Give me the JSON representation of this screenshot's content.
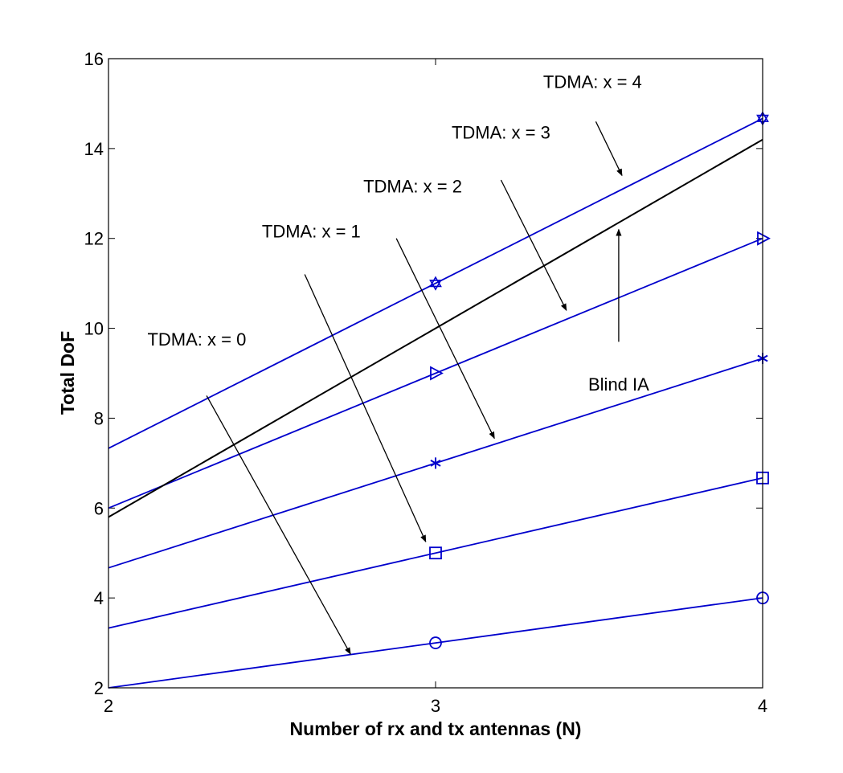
{
  "chart_data": {
    "type": "line",
    "title": "",
    "xlabel": "Number of rx and tx antennas (N)",
    "ylabel": "Total DoF",
    "xlim": [
      2,
      4
    ],
    "ylim": [
      2,
      16
    ],
    "xticks": [
      2,
      3,
      4
    ],
    "yticks": [
      2,
      4,
      6,
      8,
      10,
      12,
      14,
      16
    ],
    "grid": false,
    "legend": "none",
    "series": [
      {
        "key": "x0",
        "color": "#0000cc",
        "marker": "circle",
        "x": [
          2,
          3,
          4
        ],
        "values": [
          2,
          3,
          4
        ]
      },
      {
        "key": "x1",
        "color": "#0000cc",
        "marker": "square",
        "x": [
          2,
          3,
          4
        ],
        "values": [
          3.33,
          5,
          6.67
        ]
      },
      {
        "key": "x2",
        "color": "#0000cc",
        "marker": "asterisk",
        "x": [
          2,
          3,
          4
        ],
        "values": [
          4.67,
          7,
          9.33
        ]
      },
      {
        "key": "x3",
        "color": "#0000cc",
        "marker": "triangle-right",
        "x": [
          2,
          3,
          4
        ],
        "values": [
          6,
          9,
          12
        ]
      },
      {
        "key": "x4",
        "color": "#0000cc",
        "marker": "hexagram",
        "x": [
          2,
          3,
          4
        ],
        "values": [
          7.33,
          11,
          14.67
        ]
      },
      {
        "key": "blind",
        "color": "#000000",
        "marker": "none",
        "x": [
          2,
          3,
          4
        ],
        "values": [
          5.8,
          10,
          14.2
        ]
      }
    ],
    "annotations": [
      {
        "text": "TDMA: x = 0",
        "text_at": [
          2.27,
          9.62
        ],
        "from": [
          2.3,
          8.5
        ],
        "to": [
          2.74,
          2.75
        ]
      },
      {
        "text": "TDMA: x = 1",
        "text_at": [
          2.62,
          12.02
        ],
        "from": [
          2.6,
          11.2
        ],
        "to": [
          2.97,
          5.25
        ]
      },
      {
        "text": "TDMA: x = 2",
        "text_at": [
          2.93,
          13.02
        ],
        "from": [
          2.88,
          12.0
        ],
        "to": [
          3.18,
          7.55
        ]
      },
      {
        "text": "TDMA: x = 3",
        "text_at": [
          3.2,
          14.22
        ],
        "from": [
          3.2,
          13.3
        ],
        "to": [
          3.4,
          10.4
        ]
      },
      {
        "text": "TDMA: x = 4",
        "text_at": [
          3.48,
          15.35
        ],
        "from": [
          3.49,
          14.6
        ],
        "to": [
          3.57,
          13.4
        ]
      },
      {
        "text": "Blind IA",
        "text_at": [
          3.56,
          8.62
        ],
        "from": [
          3.56,
          9.7
        ],
        "to": [
          3.56,
          12.2
        ]
      }
    ]
  }
}
